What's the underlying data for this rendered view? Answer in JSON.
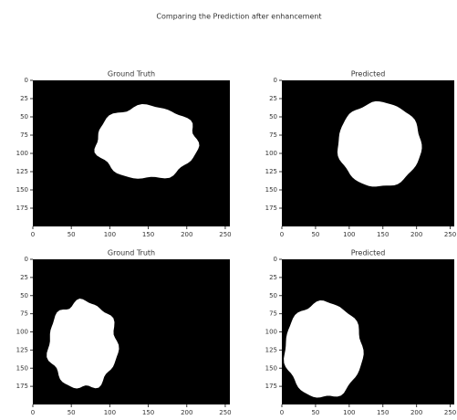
{
  "title": "Comparing the Prediction after enhancement",
  "chart_data": [
    {
      "type": "image",
      "title": "Ground Truth",
      "xlim": [
        0,
        256
      ],
      "ylim": [
        200,
        0
      ],
      "xticks": [
        0,
        50,
        100,
        150,
        200,
        250
      ],
      "yticks": [
        0,
        25,
        50,
        75,
        100,
        125,
        150,
        175
      ]
    },
    {
      "type": "image",
      "title": "Predicted",
      "xlim": [
        0,
        256
      ],
      "ylim": [
        200,
        0
      ],
      "xticks": [
        0,
        50,
        100,
        150,
        200,
        250
      ],
      "yticks": [
        0,
        25,
        50,
        75,
        100,
        125,
        150,
        175
      ]
    },
    {
      "type": "image",
      "title": "Ground Truth",
      "xlim": [
        0,
        256
      ],
      "ylim": [
        200,
        0
      ],
      "xticks": [
        0,
        50,
        100,
        150,
        200,
        250
      ],
      "yticks": [
        0,
        25,
        50,
        75,
        100,
        125,
        150,
        175
      ]
    },
    {
      "type": "image",
      "title": "Predicted",
      "xlim": [
        0,
        256
      ],
      "ylim": [
        200,
        0
      ],
      "xticks": [
        0,
        50,
        100,
        150,
        200,
        250
      ],
      "yticks": [
        0,
        25,
        50,
        75,
        100,
        125,
        150,
        175
      ]
    }
  ]
}
